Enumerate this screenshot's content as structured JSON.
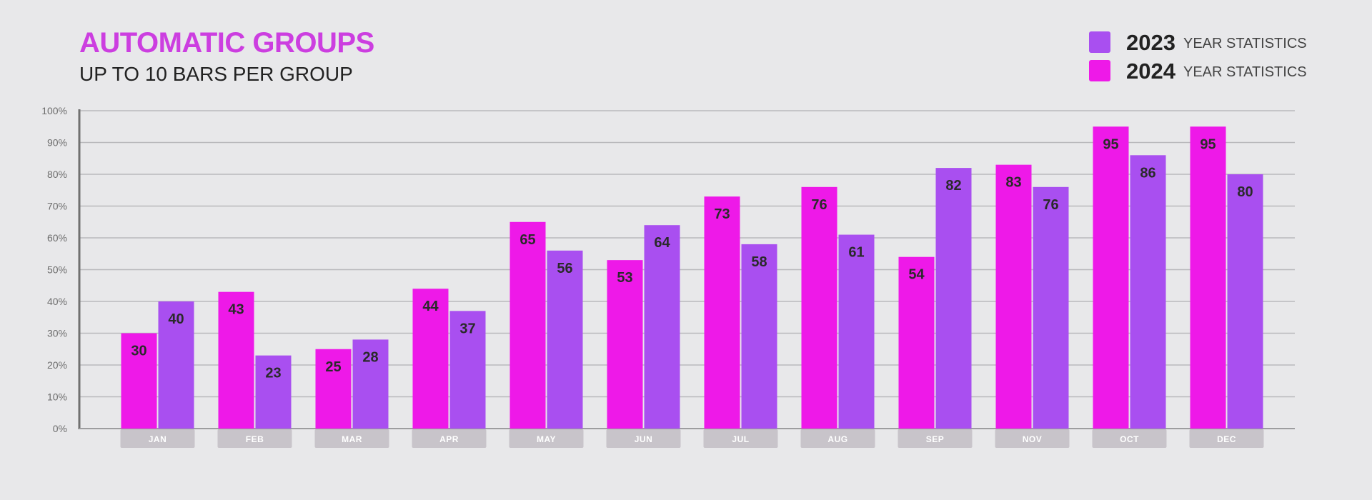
{
  "title": "AUTOMATIC GROUPS",
  "subtitle": "UP TO 10 BARS PER GROUP",
  "legend": [
    {
      "year": "2023",
      "suffix": "YEAR STATISTICS",
      "color": "#a94ff0"
    },
    {
      "year": "2024",
      "suffix": "YEAR STATISTICS",
      "color": "#ee19e8"
    }
  ],
  "chart_data": {
    "type": "bar",
    "title": "AUTOMATIC GROUPS",
    "subtitle": "UP TO 10 BARS PER GROUP",
    "categories": [
      "JAN",
      "FEB",
      "MAR",
      "APR",
      "MAY",
      "JUN",
      "JUL",
      "AUG",
      "SEP",
      "NOV",
      "OCT",
      "DEC"
    ],
    "series": [
      {
        "name": "2024",
        "color": "#ee19e8",
        "values": [
          30,
          43,
          25,
          44,
          65,
          53,
          73,
          76,
          54,
          83,
          95,
          95
        ]
      },
      {
        "name": "2023",
        "color": "#a94ff0",
        "values": [
          40,
          23,
          28,
          37,
          56,
          64,
          58,
          61,
          82,
          76,
          86,
          80
        ]
      }
    ],
    "y_ticks": [
      "0%",
      "10%",
      "20%",
      "30%",
      "40%",
      "50%",
      "60%",
      "70%",
      "80%",
      "90%",
      "100%"
    ],
    "ylim": [
      0,
      100
    ],
    "grid": true,
    "legend_position": "top-right",
    "category_label_bg": "#c8c4ca"
  }
}
